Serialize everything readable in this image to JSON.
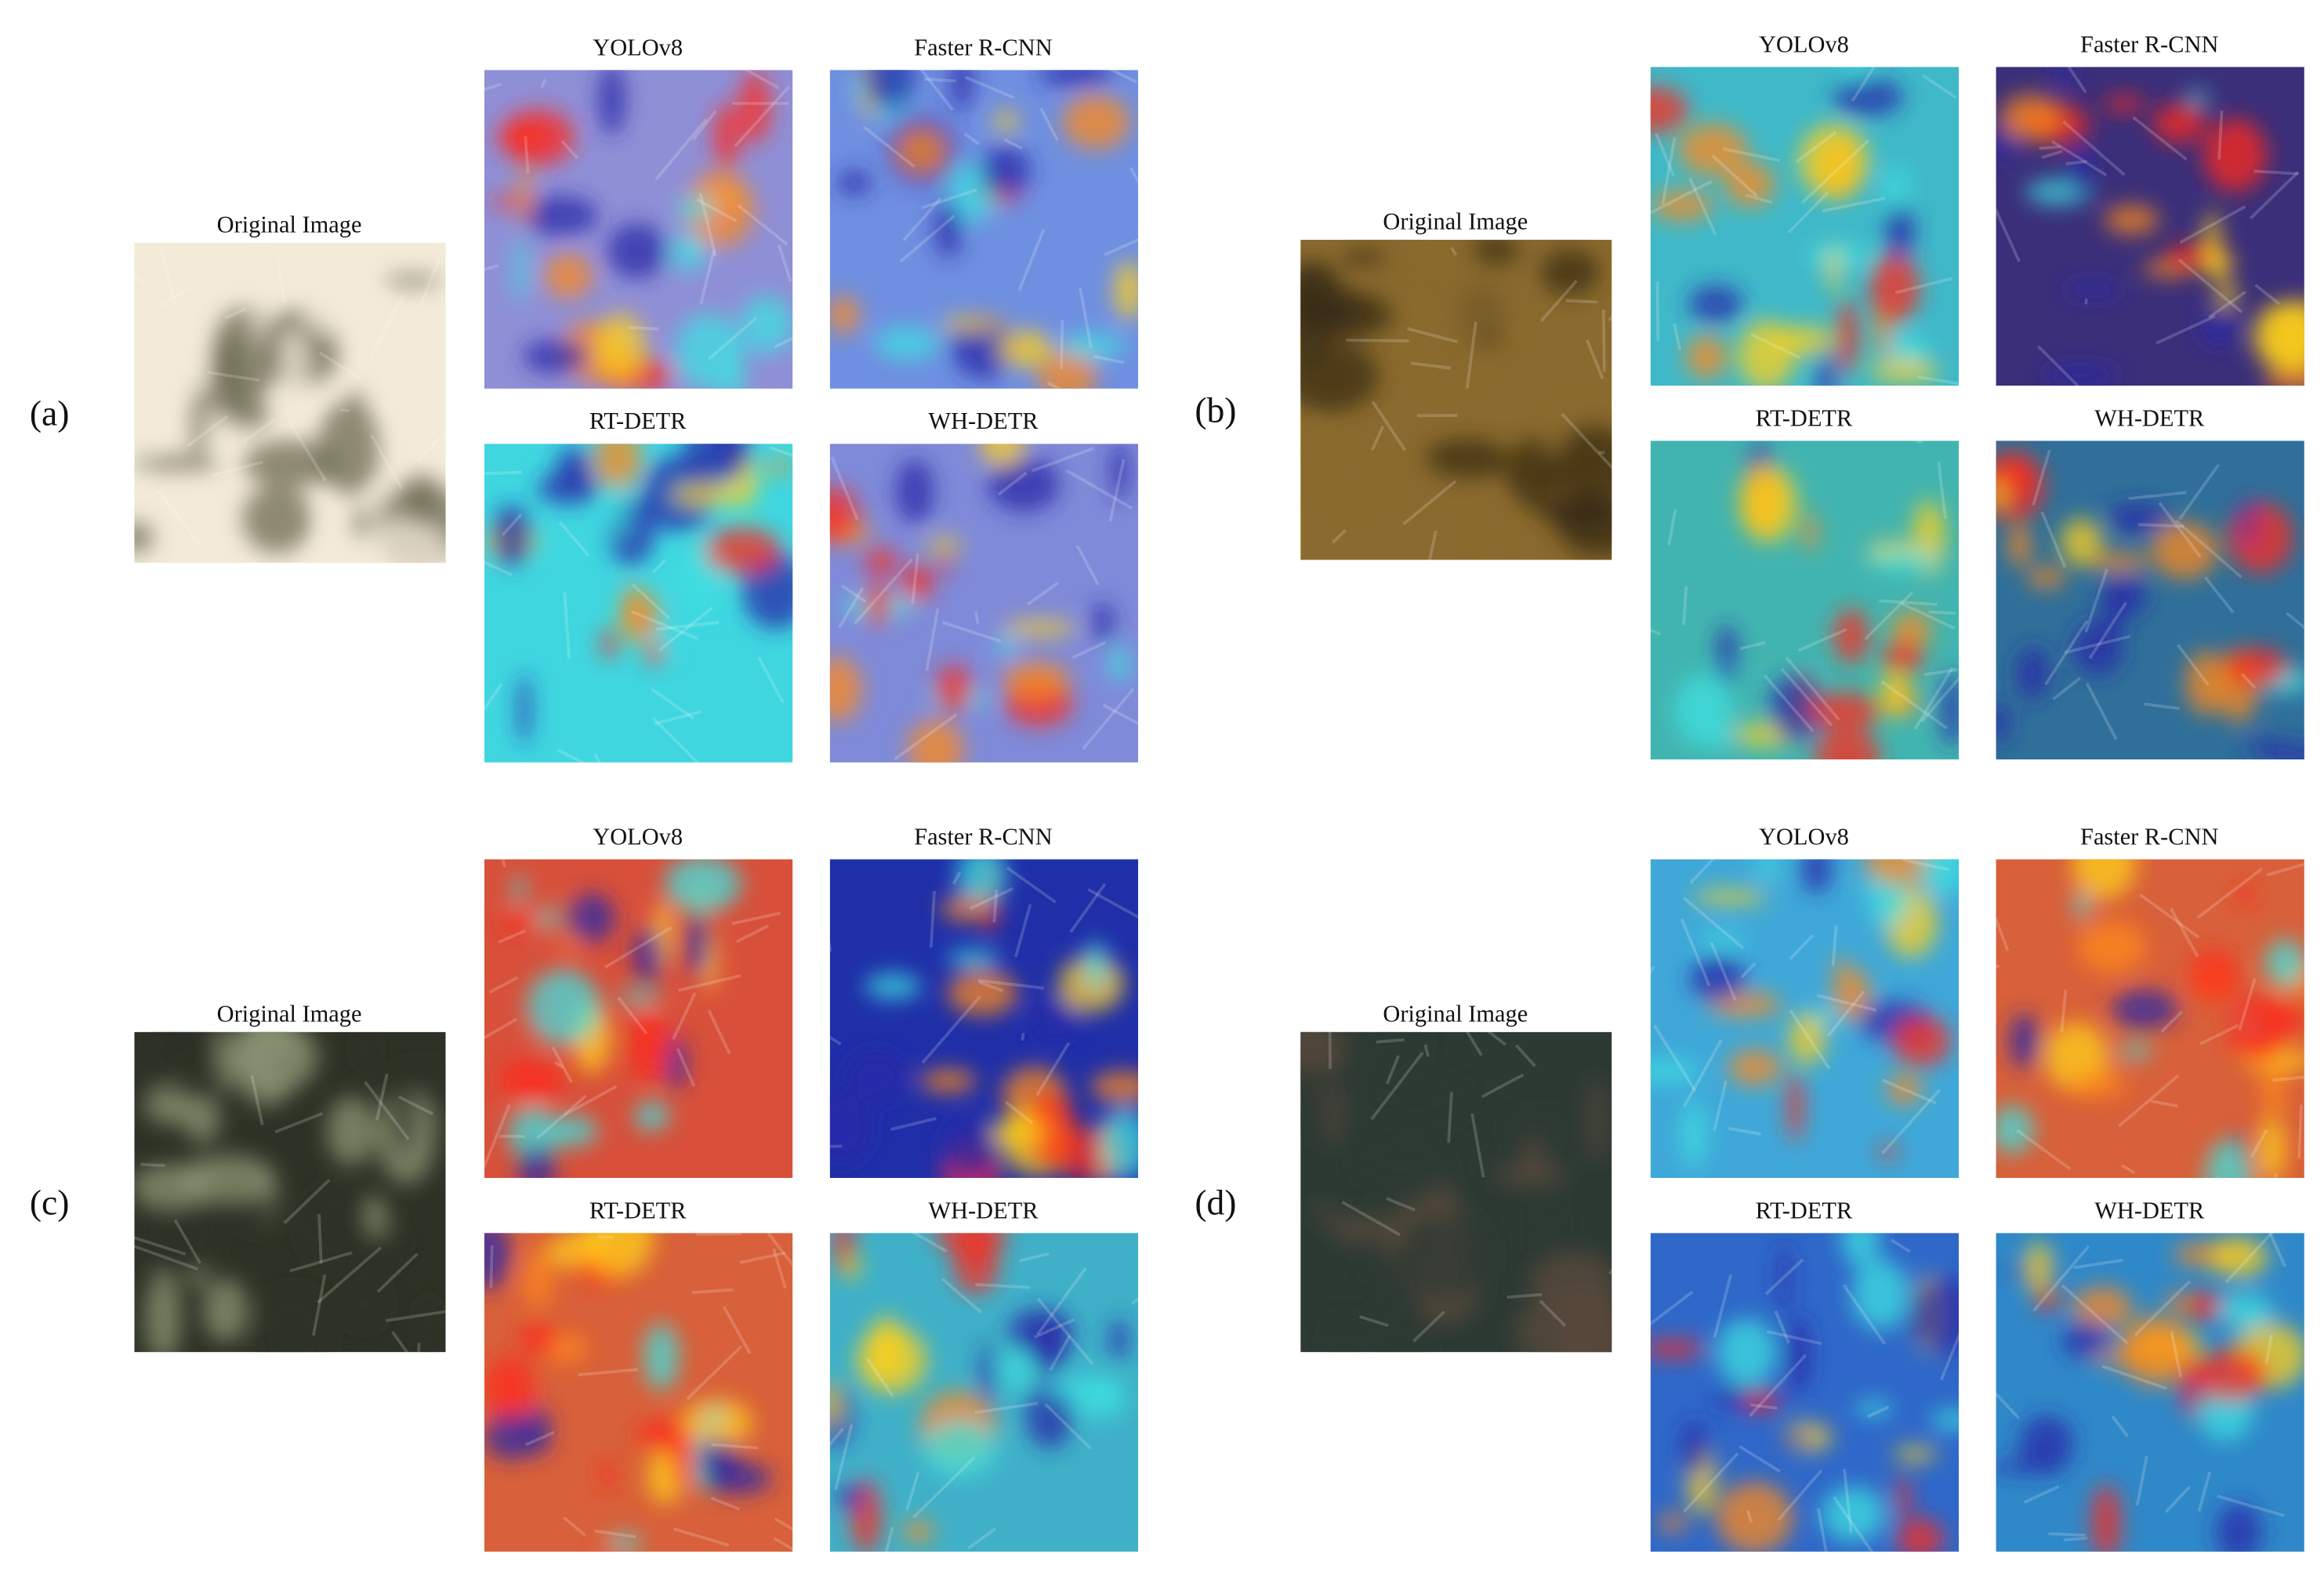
{
  "panels": [
    {
      "label": "(a)",
      "original": "Original Image",
      "methods": [
        "YOLOv8",
        "Faster R-CNN",
        "RT-DETR",
        "WH-DETR"
      ]
    },
    {
      "label": "(b)",
      "original": "Original Image",
      "methods": [
        "YOLOv8",
        "Faster R-CNN",
        "RT-DETR",
        "WH-DETR"
      ]
    },
    {
      "label": "(c)",
      "original": "Original Image",
      "methods": [
        "YOLOv8",
        "Faster R-CNN",
        "RT-DETR",
        "WH-DETR"
      ]
    },
    {
      "label": "(d)",
      "original": "Original Image",
      "methods": [
        "YOLOv8",
        "Faster R-CNN",
        "RT-DETR",
        "WH-DETR"
      ]
    }
  ]
}
